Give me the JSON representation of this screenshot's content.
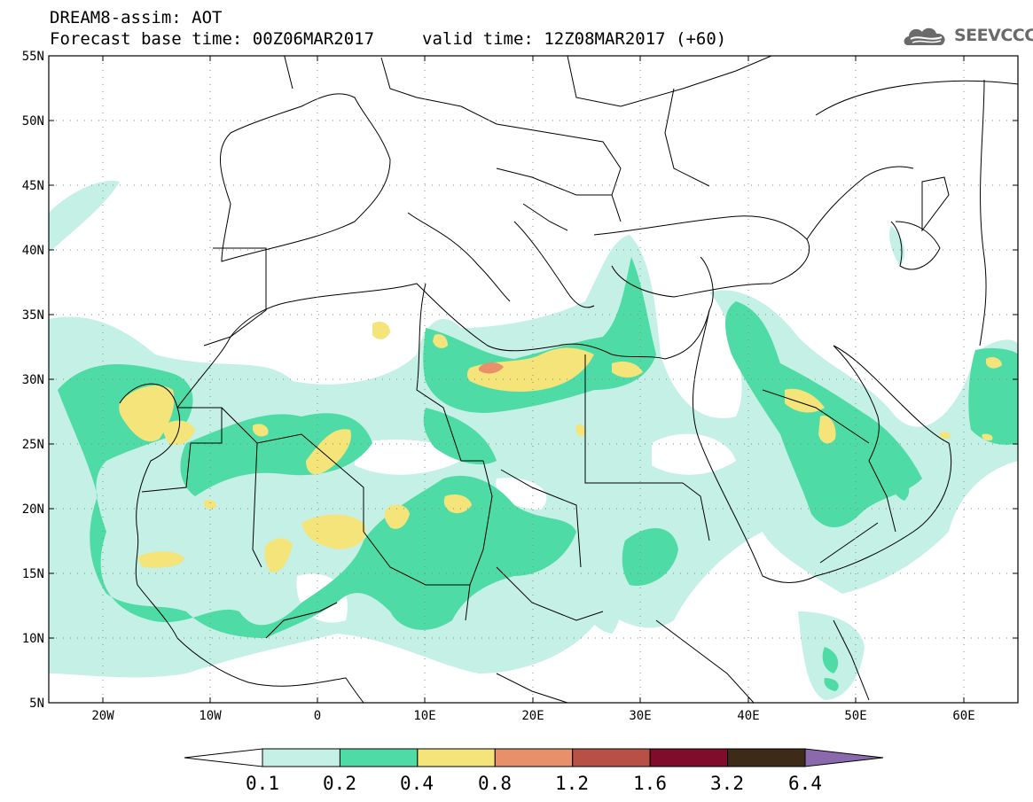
{
  "header": {
    "line1": "DREAM8-assim: AOT",
    "base_time": "Forecast base time: 00Z06MAR2017",
    "valid_time": "valid time: 12Z08MAR2017 (+60)"
  },
  "logo": {
    "text": "SEEVCCC",
    "icon": "cloud-icon"
  },
  "map": {
    "lon_range": [
      -25,
      65
    ],
    "lat_range": [
      5,
      55
    ],
    "lat_labels": [
      "55N",
      "50N",
      "45N",
      "40N",
      "35N",
      "30N",
      "25N",
      "20N",
      "15N",
      "10N",
      "5N"
    ],
    "lon_labels": [
      "20W",
      "10W",
      "0",
      "10E",
      "20E",
      "30E",
      "40E",
      "50E",
      "60E"
    ]
  },
  "legend": {
    "labels": [
      "0.1",
      "0.2",
      "0.4",
      "0.8",
      "1.2",
      "1.6",
      "3.2",
      "6.4"
    ],
    "colors": [
      "#c4f0e6",
      "#4fdba5",
      "#f4e47a",
      "#e8906a",
      "#b85046",
      "#7e0c2a",
      "#3d2a18",
      "#8a6aac"
    ]
  },
  "colors": {
    "low": "#c4f0e6",
    "mid": "#4fdba5",
    "high": "#f4e47a",
    "peak": "#e8906a"
  }
}
